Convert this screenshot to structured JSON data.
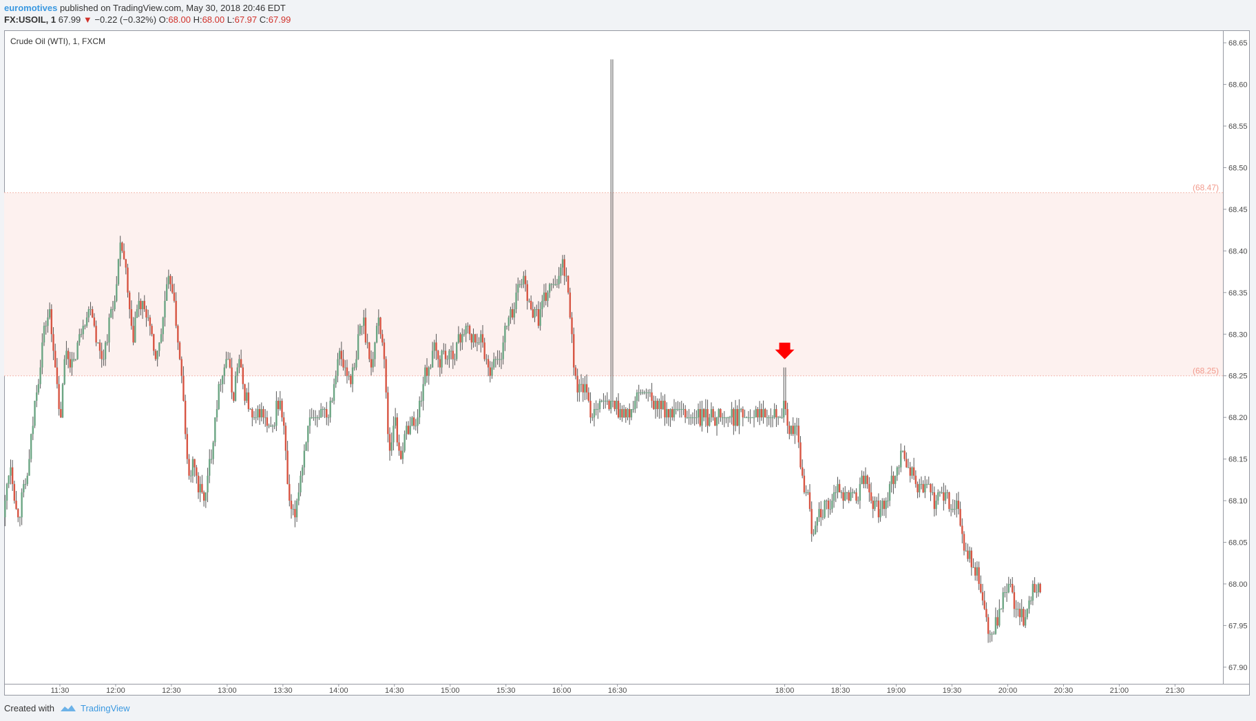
{
  "header": {
    "author": "euromotives",
    "published_text": "published on TradingView.com, May 30, 2018 20:46 EDT",
    "symbol": "FX:USOIL, 1",
    "last": "67.99",
    "change": "−0.22 (−0.32%)",
    "ohlc": [
      {
        "label": "O:",
        "value": "68.00"
      },
      {
        "label": "H:",
        "value": "68.00"
      },
      {
        "label": "L:",
        "value": "67.97"
      },
      {
        "label": "C:",
        "value": "67.99"
      }
    ]
  },
  "footer": {
    "created_with": "Created with",
    "brand": "TradingView"
  },
  "colors": {
    "up": "#6ba583",
    "down": "#d75442",
    "zone_fill": "#fdf1ef",
    "zone_line": "#f4b8ad",
    "zone_label": "#f29a8c",
    "marker": "#ff0000",
    "grid": "#e9e9ea"
  },
  "chart_data": {
    "type": "candlestick",
    "title": "Crude Oil (WTI), 1, FXCM",
    "ylim": [
      67.88,
      68.665
    ],
    "y_ticks": [
      "68.65",
      "68.60",
      "68.55",
      "68.50",
      "68.45",
      "68.40",
      "68.35",
      "68.30",
      "68.25",
      "68.20",
      "68.15",
      "68.10",
      "68.05",
      "68.00",
      "67.95",
      "67.90"
    ],
    "x_range_hours": [
      11.0,
      21.93
    ],
    "x_ticks": [
      {
        "t": 11.5,
        "label": "11:30"
      },
      {
        "t": 12.0,
        "label": "12:00"
      },
      {
        "t": 12.5,
        "label": "12:30"
      },
      {
        "t": 13.0,
        "label": "13:00"
      },
      {
        "t": 13.5,
        "label": "13:30"
      },
      {
        "t": 14.0,
        "label": "14:00"
      },
      {
        "t": 14.5,
        "label": "14:30"
      },
      {
        "t": 15.0,
        "label": "15:00"
      },
      {
        "t": 15.5,
        "label": "15:30"
      },
      {
        "t": 16.0,
        "label": "16:00"
      },
      {
        "t": 16.5,
        "label": "16:30"
      },
      {
        "t": 18.0,
        "label": "18:00"
      },
      {
        "t": 18.5,
        "label": "18:30"
      },
      {
        "t": 19.0,
        "label": "19:00"
      },
      {
        "t": 19.5,
        "label": "19:30"
      },
      {
        "t": 20.0,
        "label": "20:00"
      },
      {
        "t": 20.5,
        "label": "20:30"
      },
      {
        "t": 21.0,
        "label": "21:00"
      },
      {
        "t": 21.5,
        "label": "21:30"
      }
    ],
    "resistance_zone": {
      "upper": 68.47,
      "lower": 68.25,
      "upper_label": "(68.47)",
      "lower_label": "(68.25)"
    },
    "marker": {
      "t": 18.0,
      "price": 68.26,
      "type": "down-arrow"
    },
    "series_path": [
      [
        11.0,
        68.08
      ],
      [
        11.05,
        68.15
      ],
      [
        11.12,
        68.08
      ],
      [
        11.2,
        68.12
      ],
      [
        11.28,
        68.22
      ],
      [
        11.35,
        68.3
      ],
      [
        11.4,
        68.33
      ],
      [
        11.45,
        68.28
      ],
      [
        11.5,
        68.19
      ],
      [
        11.55,
        68.28
      ],
      [
        11.62,
        68.26
      ],
      [
        11.7,
        68.31
      ],
      [
        11.78,
        68.34
      ],
      [
        11.83,
        68.29
      ],
      [
        11.88,
        68.27
      ],
      [
        11.95,
        68.32
      ],
      [
        12.0,
        68.35
      ],
      [
        12.05,
        68.41
      ],
      [
        12.1,
        68.36
      ],
      [
        12.15,
        68.29
      ],
      [
        12.2,
        68.34
      ],
      [
        12.25,
        68.33
      ],
      [
        12.3,
        68.32
      ],
      [
        12.35,
        68.27
      ],
      [
        12.4,
        68.29
      ],
      [
        12.45,
        68.35
      ],
      [
        12.5,
        68.37
      ],
      [
        12.55,
        68.3
      ],
      [
        12.6,
        68.24
      ],
      [
        12.65,
        68.12
      ],
      [
        12.7,
        68.15
      ],
      [
        12.75,
        68.11
      ],
      [
        12.8,
        68.1
      ],
      [
        12.85,
        68.15
      ],
      [
        12.9,
        68.21
      ],
      [
        12.95,
        68.25
      ],
      [
        13.0,
        68.28
      ],
      [
        13.05,
        68.22
      ],
      [
        13.1,
        68.27
      ],
      [
        13.15,
        68.23
      ],
      [
        13.2,
        68.21
      ],
      [
        13.25,
        68.19
      ],
      [
        13.3,
        68.21
      ],
      [
        13.35,
        68.19
      ],
      [
        13.4,
        68.18
      ],
      [
        13.45,
        68.22
      ],
      [
        13.5,
        68.2
      ],
      [
        13.55,
        68.1
      ],
      [
        13.6,
        68.08
      ],
      [
        13.65,
        68.12
      ],
      [
        13.7,
        68.17
      ],
      [
        13.75,
        68.2
      ],
      [
        13.8,
        68.19
      ],
      [
        13.85,
        68.22
      ],
      [
        13.9,
        68.2
      ],
      [
        13.95,
        68.24
      ],
      [
        14.0,
        68.28
      ],
      [
        14.05,
        68.26
      ],
      [
        14.1,
        68.25
      ],
      [
        14.15,
        68.26
      ],
      [
        14.2,
        68.32
      ],
      [
        14.25,
        68.3
      ],
      [
        14.3,
        68.25
      ],
      [
        14.35,
        68.33
      ],
      [
        14.4,
        68.29
      ],
      [
        14.45,
        68.16
      ],
      [
        14.5,
        68.2
      ],
      [
        14.55,
        68.15
      ],
      [
        14.6,
        68.18
      ],
      [
        14.65,
        68.2
      ],
      [
        14.7,
        68.19
      ],
      [
        14.75,
        68.24
      ],
      [
        14.8,
        68.26
      ],
      [
        14.85,
        68.28
      ],
      [
        14.9,
        68.27
      ],
      [
        14.95,
        68.28
      ],
      [
        15.0,
        68.27
      ],
      [
        15.05,
        68.28
      ],
      [
        15.1,
        68.3
      ],
      [
        15.15,
        68.31
      ],
      [
        15.2,
        68.29
      ],
      [
        15.25,
        68.3
      ],
      [
        15.3,
        68.28
      ],
      [
        15.35,
        68.26
      ],
      [
        15.4,
        68.27
      ],
      [
        15.45,
        68.27
      ],
      [
        15.5,
        68.31
      ],
      [
        15.55,
        68.32
      ],
      [
        15.6,
        68.35
      ],
      [
        15.65,
        68.37
      ],
      [
        15.7,
        68.34
      ],
      [
        15.75,
        68.33
      ],
      [
        15.8,
        68.32
      ],
      [
        15.85,
        68.34
      ],
      [
        15.9,
        68.36
      ],
      [
        15.95,
        68.35
      ],
      [
        16.0,
        68.39
      ],
      [
        16.05,
        68.37
      ],
      [
        16.1,
        68.28
      ],
      [
        16.15,
        68.23
      ],
      [
        16.2,
        68.24
      ],
      [
        16.25,
        68.21
      ],
      [
        16.3,
        68.21
      ],
      [
        16.35,
        68.22
      ],
      [
        16.4,
        68.22
      ],
      [
        16.5,
        68.21
      ],
      [
        16.6,
        68.2
      ],
      [
        16.7,
        68.23
      ],
      [
        16.8,
        68.22
      ],
      [
        16.9,
        68.21
      ],
      [
        17.1,
        68.2
      ],
      [
        17.5,
        68.2
      ],
      [
        17.9,
        68.21
      ],
      [
        18.0,
        68.21
      ],
      [
        18.05,
        68.18
      ],
      [
        18.1,
        68.19
      ],
      [
        18.15,
        68.13
      ],
      [
        18.2,
        68.11
      ],
      [
        18.25,
        68.06
      ],
      [
        18.3,
        68.09
      ],
      [
        18.35,
        68.09
      ],
      [
        18.4,
        68.09
      ],
      [
        18.45,
        68.11
      ],
      [
        18.5,
        68.12
      ],
      [
        18.55,
        68.1
      ],
      [
        18.6,
        68.11
      ],
      [
        18.65,
        68.1
      ],
      [
        18.7,
        68.13
      ],
      [
        18.75,
        68.11
      ],
      [
        18.8,
        68.1
      ],
      [
        18.85,
        68.09
      ],
      [
        18.9,
        68.1
      ],
      [
        18.95,
        68.12
      ],
      [
        19.0,
        68.14
      ],
      [
        19.05,
        68.16
      ],
      [
        19.1,
        68.14
      ],
      [
        19.15,
        68.13
      ],
      [
        19.2,
        68.11
      ],
      [
        19.25,
        68.12
      ],
      [
        19.3,
        68.11
      ],
      [
        19.35,
        68.1
      ],
      [
        19.4,
        68.11
      ],
      [
        19.45,
        68.1
      ],
      [
        19.5,
        68.09
      ],
      [
        19.55,
        68.1
      ],
      [
        19.6,
        68.04
      ],
      [
        19.65,
        68.03
      ],
      [
        19.7,
        68.02
      ],
      [
        19.75,
        68.0
      ],
      [
        19.8,
        67.96
      ],
      [
        19.85,
        67.93
      ],
      [
        19.9,
        67.95
      ],
      [
        19.95,
        67.98
      ],
      [
        20.0,
        68.0
      ],
      [
        20.05,
        67.98
      ],
      [
        20.1,
        67.97
      ],
      [
        20.15,
        67.96
      ],
      [
        20.2,
        67.98
      ],
      [
        20.25,
        68.0
      ],
      [
        20.3,
        67.99
      ]
    ]
  }
}
